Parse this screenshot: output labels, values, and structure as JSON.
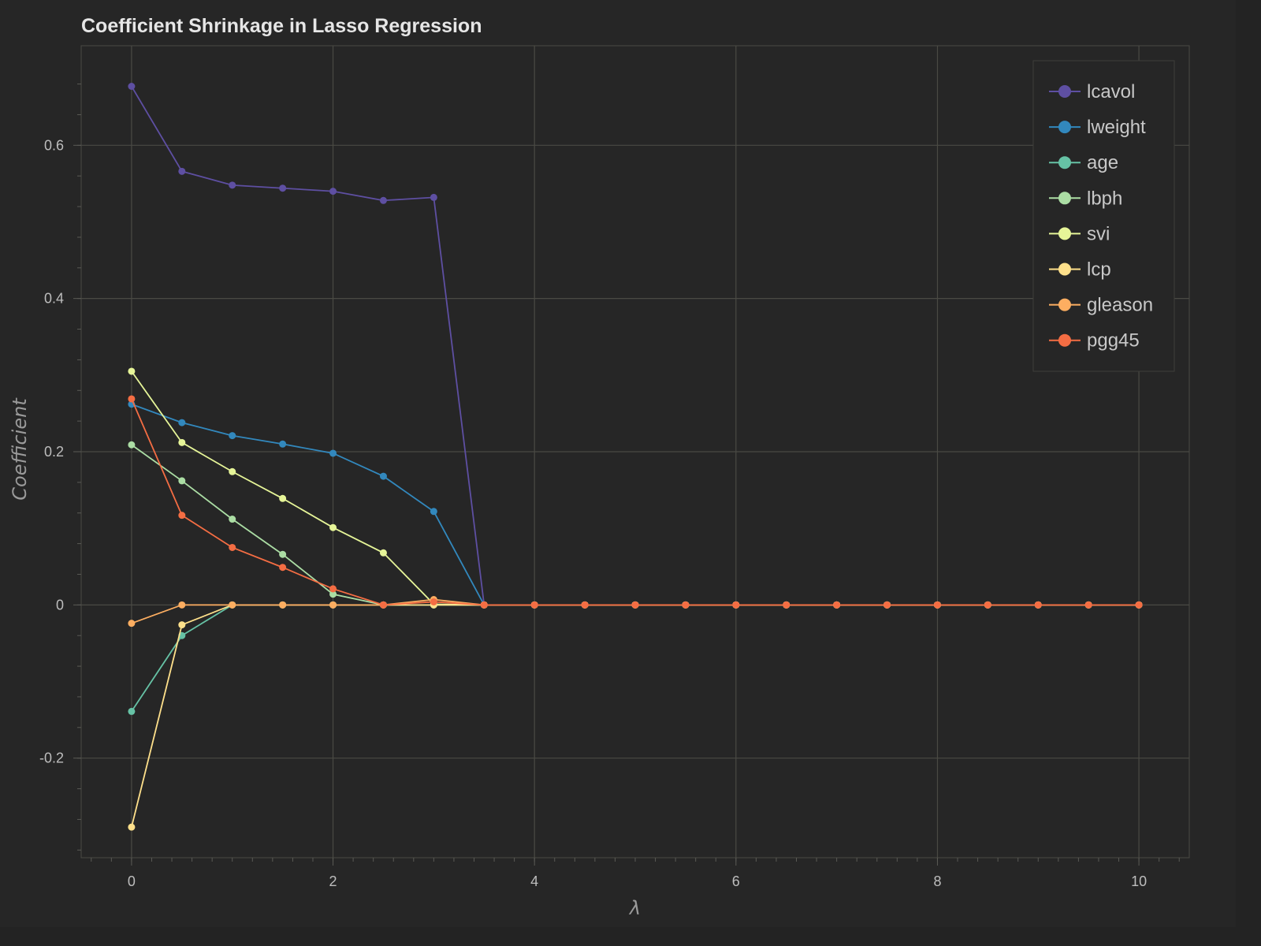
{
  "chart_data": {
    "type": "line",
    "title": "Coefficient Shrinkage in Lasso Regression",
    "xlabel": "λ",
    "ylabel": "Coefficient",
    "xlim": [
      -0.5,
      10.5
    ],
    "ylim": [
      -0.33,
      0.73
    ],
    "x_ticks": [
      0,
      2,
      4,
      6,
      8,
      10
    ],
    "x_tick_labels": [
      "0",
      "2",
      "4",
      "6",
      "8",
      "10"
    ],
    "y_ticks": [
      -0.2,
      0,
      0.2,
      0.4,
      0.6
    ],
    "y_tick_labels": [
      "-0.2",
      "0",
      "0.2",
      "0.4",
      "0.6"
    ],
    "grid": true,
    "legend_position": "top-right",
    "x": [
      0,
      0.5,
      1,
      1.5,
      2,
      2.5,
      3,
      3.5,
      4,
      4.5,
      5,
      5.5,
      6,
      6.5,
      7,
      7.5,
      8,
      8.5,
      9,
      9.5,
      10
    ],
    "series": [
      {
        "name": "lcavol",
        "color": "#5e4fa2",
        "values": [
          0.677,
          0.566,
          0.548,
          0.544,
          0.54,
          0.528,
          0.532,
          0,
          0,
          0,
          0,
          0,
          0,
          0,
          0,
          0,
          0,
          0,
          0,
          0,
          0
        ]
      },
      {
        "name": "lweight",
        "color": "#3288bd",
        "values": [
          0.262,
          0.238,
          0.221,
          0.21,
          0.198,
          0.168,
          0.122,
          0,
          0,
          0,
          0,
          0,
          0,
          0,
          0,
          0,
          0,
          0,
          0,
          0,
          0
        ]
      },
      {
        "name": "age",
        "color": "#66c2a5",
        "values": [
          -0.139,
          -0.04,
          0,
          0,
          0,
          0,
          0,
          0,
          0,
          0,
          0,
          0,
          0,
          0,
          0,
          0,
          0,
          0,
          0,
          0,
          0
        ]
      },
      {
        "name": "lbph",
        "color": "#abdda4",
        "values": [
          0.209,
          0.162,
          0.112,
          0.066,
          0.014,
          0,
          0,
          0,
          0,
          0,
          0,
          0,
          0,
          0,
          0,
          0,
          0,
          0,
          0,
          0,
          0
        ]
      },
      {
        "name": "svi",
        "color": "#e6f598",
        "values": [
          0.305,
          0.212,
          0.174,
          0.139,
          0.101,
          0.068,
          0.001,
          0,
          0,
          0,
          0,
          0,
          0,
          0,
          0,
          0,
          0,
          0,
          0,
          0,
          0
        ]
      },
      {
        "name": "lcp",
        "color": "#fee08b",
        "values": [
          -0.29,
          -0.026,
          0,
          0,
          0,
          0,
          0,
          0,
          0,
          0,
          0,
          0,
          0,
          0,
          0,
          0,
          0,
          0,
          0,
          0,
          0
        ]
      },
      {
        "name": "gleason",
        "color": "#fdae61",
        "values": [
          -0.024,
          0,
          0,
          0,
          0,
          0,
          0.007,
          0,
          0,
          0,
          0,
          0,
          0,
          0,
          0,
          0,
          0,
          0,
          0,
          0,
          0
        ]
      },
      {
        "name": "pgg45",
        "color": "#f46d43",
        "values": [
          0.269,
          0.117,
          0.075,
          0.049,
          0.021,
          0,
          0.004,
          0,
          0,
          0,
          0,
          0,
          0,
          0,
          0,
          0,
          0,
          0,
          0,
          0,
          0
        ]
      }
    ]
  }
}
